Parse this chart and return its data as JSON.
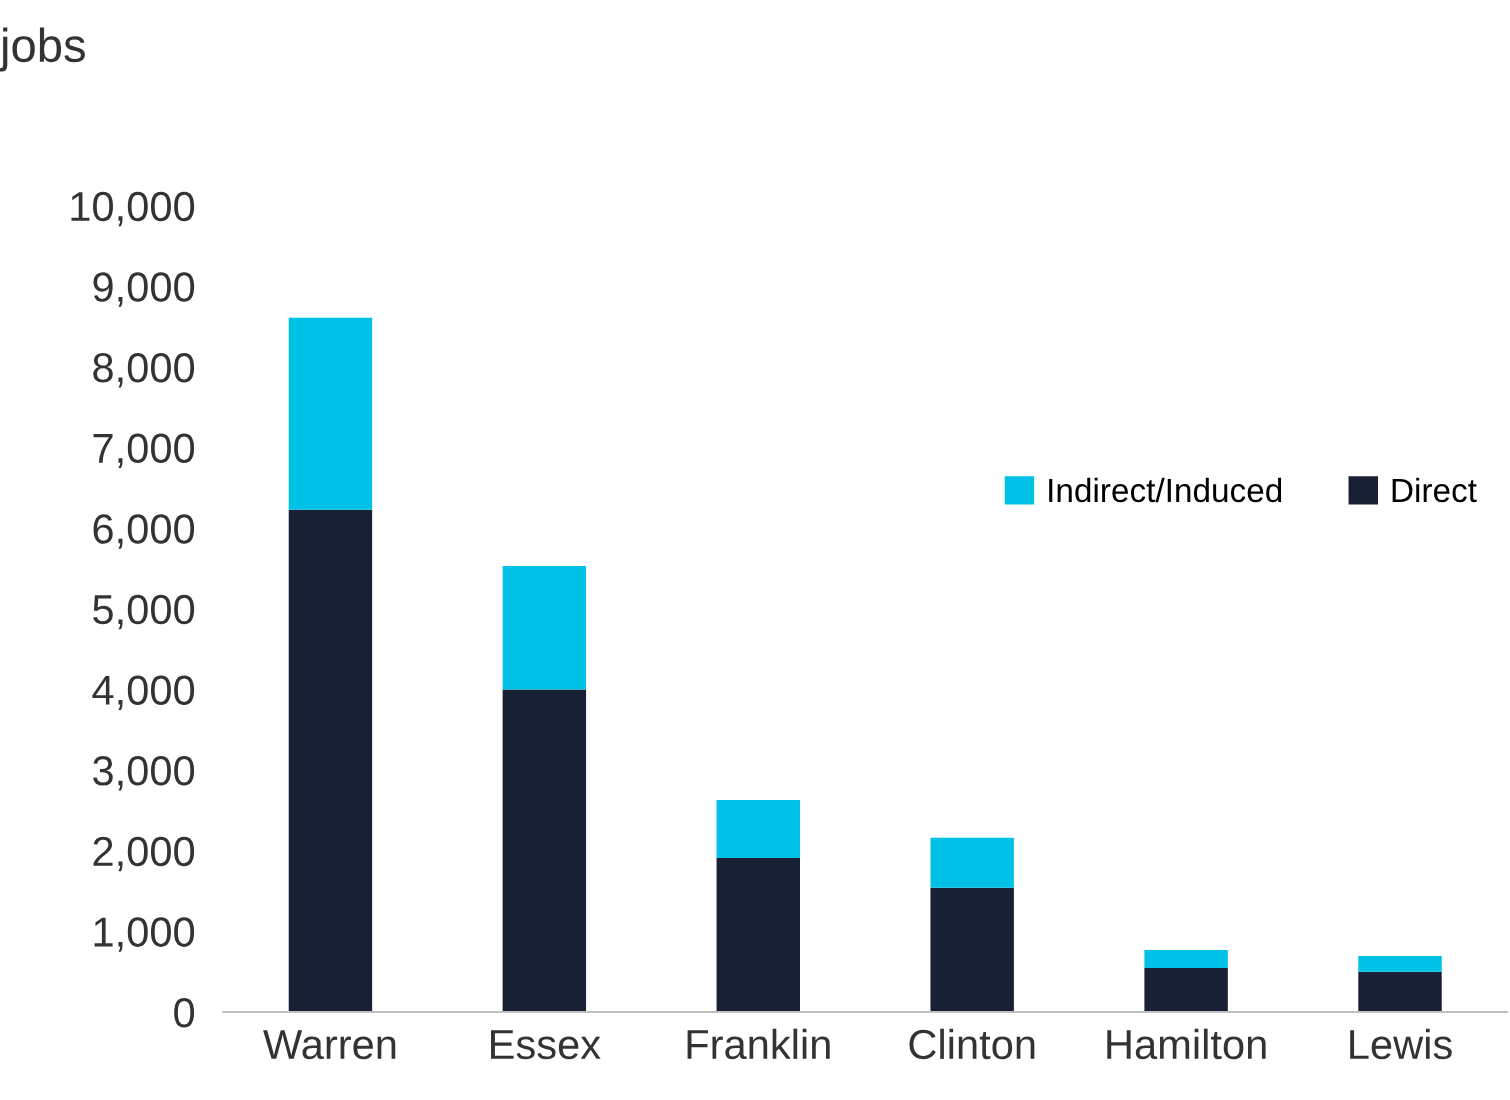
{
  "chart_data": {
    "type": "bar",
    "stacked": true,
    "ylabel": "jobs",
    "categories": [
      "Warren",
      "Essex",
      "Franklin",
      "Clinton",
      "Hamilton",
      "Lewis"
    ],
    "series": [
      {
        "name": "Direct",
        "color": "#182133",
        "values": [
          6230,
          4000,
          1910,
          1540,
          545,
          500
        ]
      },
      {
        "name": "Indirect/Induced",
        "color": "#00c2e6",
        "values": [
          2380,
          1530,
          720,
          620,
          225,
          195
        ]
      }
    ],
    "ylim": [
      0,
      10000
    ],
    "yticks": [
      {
        "value": 0,
        "label": "0"
      },
      {
        "value": 1000,
        "label": "1,000"
      },
      {
        "value": 2000,
        "label": "2,000"
      },
      {
        "value": 3000,
        "label": "3,000"
      },
      {
        "value": 4000,
        "label": "4,000"
      },
      {
        "value": 5000,
        "label": "5,000"
      },
      {
        "value": 6000,
        "label": "6,000"
      },
      {
        "value": 7000,
        "label": "7,000"
      },
      {
        "value": 8000,
        "label": "8,000"
      },
      {
        "value": 9000,
        "label": "9,000"
      },
      {
        "value": 10000,
        "label": "10,000"
      }
    ],
    "grid": false,
    "legend": "top right"
  }
}
